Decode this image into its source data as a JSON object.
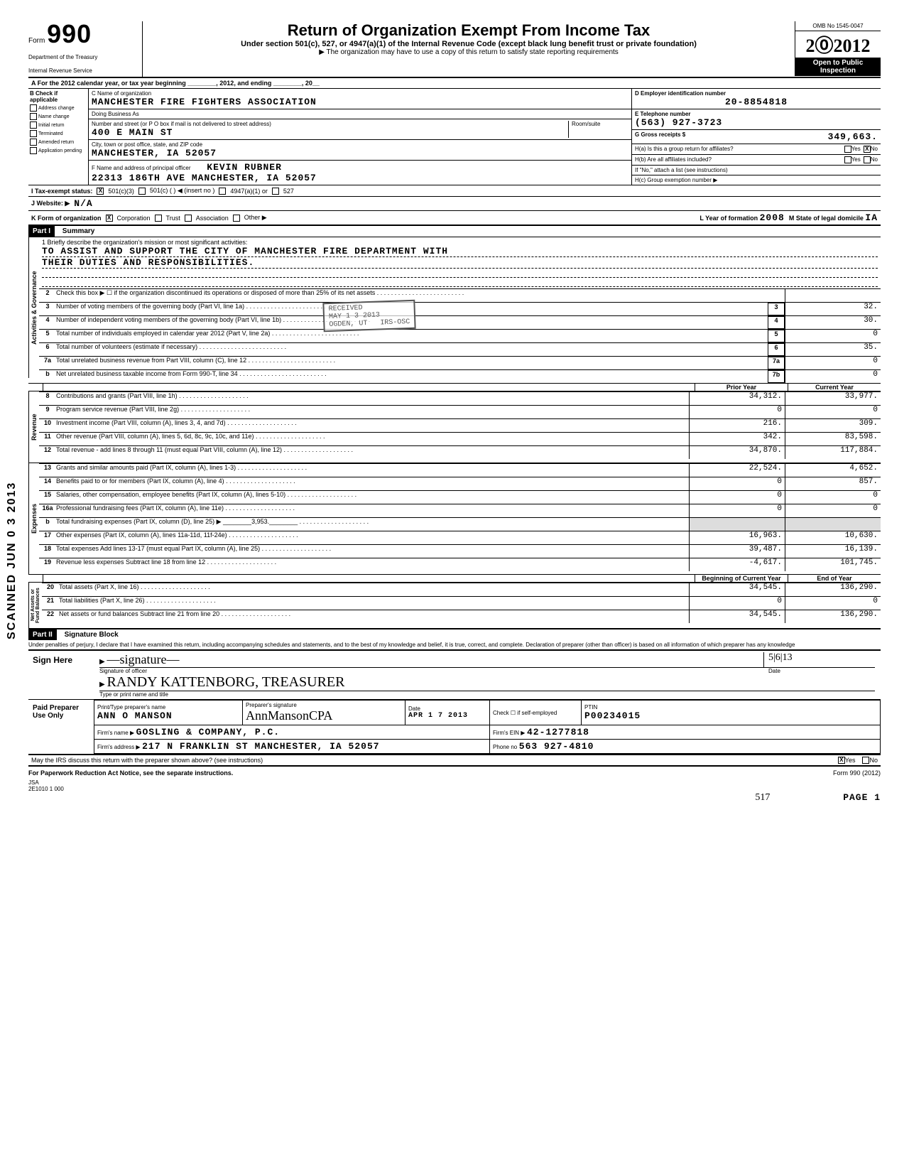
{
  "form": {
    "omb": "OMB No 1545-0047",
    "form_label": "Form",
    "form_number": "990",
    "dept1": "Department of the Treasury",
    "dept2": "Internal Revenue Service",
    "title": "Return of Organization Exempt From Income Tax",
    "subtitle": "Under section 501(c), 527, or 4947(a)(1) of the Internal Revenue Code (except black lung benefit trust or private foundation)",
    "note": "▶ The organization may have to use a copy of this return to satisfy state reporting requirements",
    "year": "2012",
    "open_public": "Open to Public Inspection"
  },
  "line_a": "A For the 2012 calendar year, or tax year beginning ________, 2012, and ending ________, 20__",
  "section_b": {
    "label": "B Check if applicable",
    "items": [
      "Address change",
      "Name change",
      "Initial return",
      "Terminated",
      "Amended return",
      "Application pending"
    ]
  },
  "section_c": {
    "label_name": "C Name of organization",
    "org_name": "MANCHESTER FIRE FIGHTERS ASSOCIATION",
    "dba_label": "Doing Business As",
    "addr_label": "Number and street (or P O box if mail is not delivered to street address)",
    "room_label": "Room/suite",
    "street": "400 E MAIN ST",
    "city_label": "City, town or post office, state, and ZIP code",
    "city": "MANCHESTER, IA 52057",
    "officer_label": "F Name and address of principal officer",
    "officer_name": "KEVIN RUBNER",
    "officer_addr": "22313 186TH AVE MANCHESTER, IA 52057"
  },
  "section_d": {
    "label": "D Employer identification number",
    "ein": "20-8854818"
  },
  "section_e": {
    "label": "E Telephone number",
    "phone": "(563) 927-3723"
  },
  "section_g": {
    "label": "G Gross receipts $",
    "value": "349,663."
  },
  "section_h": {
    "ha_label": "H(a) Is this a group return for affiliates?",
    "ha_yes": "Yes",
    "ha_no": "No",
    "ha_marked": "X",
    "hb_label": "H(b) Are all affiliates included?",
    "hb_yes": "Yes",
    "hb_no": "No",
    "hb_note": "If \"No,\" attach a list (see instructions)",
    "hc_label": "H(c) Group exemption number ▶"
  },
  "row_i": {
    "label": "I   Tax-exempt status:",
    "opts": [
      "501(c)(3)",
      "501(c) (    ) ◀ (insert no )",
      "4947(a)(1) or",
      "527"
    ],
    "marked": "X"
  },
  "row_j": {
    "label": "J   Website: ▶",
    "value": "N/A"
  },
  "row_k": {
    "label": "K  Form of organization",
    "opts": [
      "Corporation",
      "Trust",
      "Association",
      "Other ▶"
    ],
    "marked": "X",
    "year_label": "L Year of formation",
    "year_val": "2008",
    "state_label": "M State of legal domicile",
    "state_val": "IA"
  },
  "part1": {
    "title": "Part I",
    "summary": "Summary",
    "mission_label": "1   Briefly describe the organization's mission or most significant activities:",
    "mission_text1": "TO ASSIST AND SUPPORT THE CITY OF MANCHESTER FIRE DEPARTMENT WITH",
    "mission_text2": "THEIR DUTIES AND RESPONSIBILITIES.",
    "governance_lines": [
      {
        "n": "2",
        "desc": "Check this box ▶ ☐ if the organization discontinued its operations or disposed of more than 25% of its net assets"
      },
      {
        "n": "3",
        "desc": "Number of voting members of the governing body (Part VI, line 1a)",
        "box": "3",
        "val": "32."
      },
      {
        "n": "4",
        "desc": "Number of independent voting members of the governing body (Part VI, line 1b)",
        "box": "4",
        "val": "30."
      },
      {
        "n": "5",
        "desc": "Total number of individuals employed in calendar year 2012 (Part V, line 2a)",
        "box": "5",
        "val": "0"
      },
      {
        "n": "6",
        "desc": "Total number of volunteers (estimate if necessary)",
        "box": "6",
        "val": "35."
      },
      {
        "n": "7a",
        "desc": "Total unrelated business revenue from Part VIII, column (C), line 12",
        "box": "7a",
        "val": "0"
      },
      {
        "n": "b",
        "desc": "Net unrelated business taxable income from Form 990-T, line 34",
        "box": "7b",
        "val": "0"
      }
    ],
    "stamp_text": "RECEIVED  MAY 1 3 2013  OGDEN, UT",
    "col_prior": "Prior Year",
    "col_current": "Current Year",
    "revenue_label": "Revenue",
    "revenue_lines": [
      {
        "n": "8",
        "desc": "Contributions and grants (Part VIII, line 1h)",
        "prior": "34,312.",
        "curr": "33,977."
      },
      {
        "n": "9",
        "desc": "Program service revenue (Part VIII, line 2g)",
        "prior": "0",
        "curr": "0"
      },
      {
        "n": "10",
        "desc": "Investment income (Part VIII, column (A), lines 3, 4, and 7d)",
        "prior": "216.",
        "curr": "309."
      },
      {
        "n": "11",
        "desc": "Other revenue (Part VIII, column (A), lines 5, 6d, 8c, 9c, 10c, and 11e)",
        "prior": "342.",
        "curr": "83,598."
      },
      {
        "n": "12",
        "desc": "Total revenue - add lines 8 through 11 (must equal Part VIII, column (A), line 12)",
        "prior": "34,870.",
        "curr": "117,884."
      }
    ],
    "expenses_label": "Expenses",
    "expense_lines": [
      {
        "n": "13",
        "desc": "Grants and similar amounts paid (Part IX, column (A), lines 1-3)",
        "prior": "22,524.",
        "curr": "4,652."
      },
      {
        "n": "14",
        "desc": "Benefits paid to or for members (Part IX, column (A), line 4)",
        "prior": "0",
        "curr": "857."
      },
      {
        "n": "15",
        "desc": "Salaries, other compensation, employee benefits (Part IX, column (A), lines 5-10)",
        "prior": "0",
        "curr": "0"
      },
      {
        "n": "16a",
        "desc": "Professional fundraising fees (Part IX, column (A), line 11e)",
        "prior": "0",
        "curr": "0"
      },
      {
        "n": "b",
        "desc": "Total fundraising expenses (Part IX, column (D), line 25) ▶ ________3,953.________",
        "prior": "",
        "curr": ""
      },
      {
        "n": "17",
        "desc": "Other expenses (Part IX, column (A), lines 11a-11d, 11f-24e)",
        "prior": "16,963.",
        "curr": "10,630."
      },
      {
        "n": "18",
        "desc": "Total expenses  Add lines 13-17 (must equal Part IX, column (A), line 25)",
        "prior": "39,487.",
        "curr": "16,139."
      },
      {
        "n": "19",
        "desc": "Revenue less expenses  Subtract line 18 from line 12",
        "prior": "-4,617.",
        "curr": "101,745."
      }
    ],
    "netassets_label": "Net Assets or Fund Balances",
    "col_beg": "Beginning of Current Year",
    "col_end": "End of Year",
    "net_lines": [
      {
        "n": "20",
        "desc": "Total assets (Part X, line 16)",
        "prior": "34,545.",
        "curr": "136,290."
      },
      {
        "n": "21",
        "desc": "Total liabilities (Part X, line 26)",
        "prior": "0",
        "curr": "0"
      },
      {
        "n": "22",
        "desc": "Net assets or fund balances  Subtract line 21 from line 20",
        "prior": "34,545.",
        "curr": "136,290."
      }
    ]
  },
  "part2": {
    "title": "Part II",
    "block_title": "Signature Block",
    "perjury": "Under penalties of perjury, I declare that I have examined this return, including accompanying schedules and statements, and to the best of my knowledge and belief, it is true, correct, and complete. Declaration of preparer (other than officer) is based on all information of which preparer has any knowledge",
    "sign_here": "Sign Here",
    "sig_label": "Signature of officer",
    "date_label": "Date",
    "date_val": "5|6|13",
    "typed_name": "RANDY KATTENBORG, TREASURER",
    "typed_label": "Type or print name and title",
    "paid_label": "Paid Preparer Use Only",
    "prep_name_label": "Print/Type preparer's name",
    "prep_name": "ANN O MANSON",
    "prep_sig_label": "Preparer's signature",
    "prep_sig": "AnnMansonCPA",
    "prep_date_label": "Date",
    "prep_date": "APR 1 7 2013",
    "check_self": "Check ☐ if self-employed",
    "ptin_label": "PTIN",
    "ptin": "P00234015",
    "firm_name_label": "Firm's name ▶",
    "firm_name": "GOSLING & COMPANY, P.C.",
    "firm_ein_label": "Firm's EIN ▶",
    "firm_ein": "42-1277818",
    "firm_addr_label": "Firm's address ▶",
    "firm_addr": "217 N FRANKLIN ST MANCHESTER, IA 52057",
    "phone_label": "Phone no",
    "phone": "563 927-4810",
    "irs_discuss": "May the IRS discuss this return with the preparer shown above? (see instructions)",
    "irs_yes": "Yes",
    "irs_no": "No",
    "irs_mark": "X"
  },
  "footer": {
    "paperwork": "For Paperwork Reduction Act Notice, see the separate instructions.",
    "form_ref": "Form 990 (2012)",
    "jsa": "JSA",
    "code": "2E1010 1 000",
    "page": "PAGE 1",
    "hand_num": "517"
  },
  "side_stamp": "SCANNED JUN 0 3 2013"
}
